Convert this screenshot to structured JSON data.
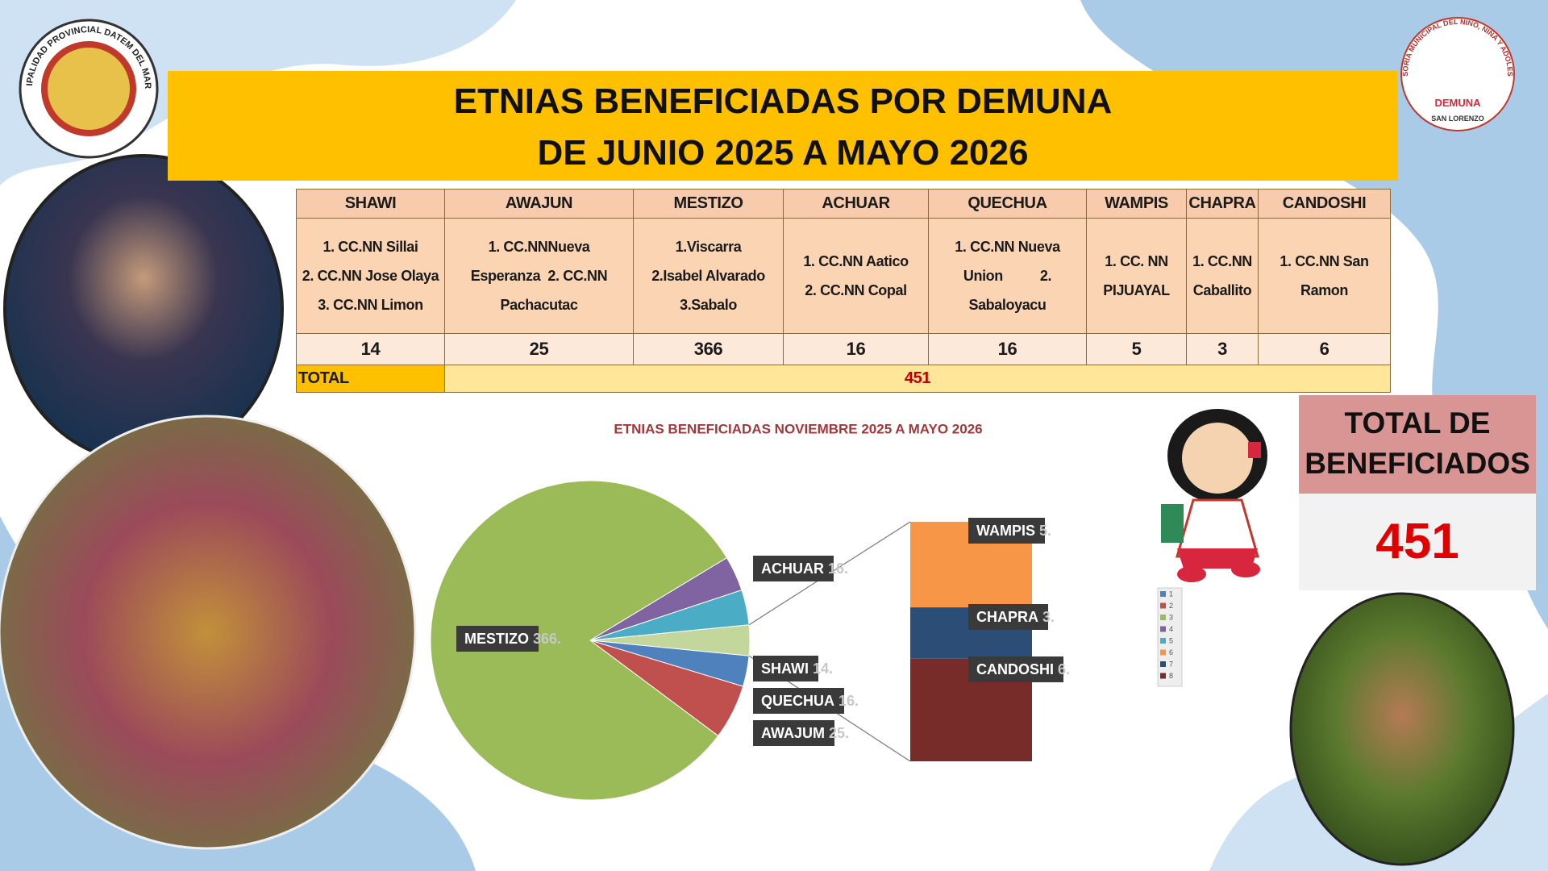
{
  "header": {
    "logo_left_text": "MUNICIPALIDAD PROVINCIAL DATEM DEL MARAÑON",
    "title_lines": [
      "ETNIAS BENEFICIADAS POR DEMUNA",
      "DE JUNIO 2025 A MAYO 2026"
    ],
    "logo_right_text": "DEFENSORÍA MUNICIPAL DEL NIÑO, NIÑA Y ADOLESCENTE",
    "logo_right_name": "DEMUNA",
    "logo_right_place": "SAN LORENZO"
  },
  "table": {
    "headers": [
      "SHAWI",
      "AWAJUN",
      "MESTIZO",
      "ACHUAR",
      "QUECHUA",
      "WAMPIS",
      "CHAPRA",
      "CANDOSHI"
    ],
    "communities": [
      [
        "1. CC.NN Sillai",
        "2. CC.NN Jose Olaya",
        "3. CC.NN Limon"
      ],
      [
        "1. CC.NNNueva",
        "Esperanza  2. CC.NN",
        "Pachacutac"
      ],
      [
        "1.Viscarra",
        "2.Isabel Alvarado",
        "3.Sabalo"
      ],
      [
        "1. CC.NN Aatico",
        "2. CC.NN Copal"
      ],
      [
        "1. CC.NN Nueva",
        "Union          2.",
        "Sabaloyacu"
      ],
      [
        "1. CC. NN",
        "PIJUAYAL"
      ],
      [
        "1. CC.NN",
        "Caballito"
      ],
      [
        "1. CC.NN San",
        "Ramon"
      ]
    ],
    "counts": [
      14,
      25,
      366,
      16,
      16,
      5,
      3,
      6
    ],
    "total_label": "TOTAL",
    "total": 451
  },
  "chart_data": {
    "type": "pie-of-bar",
    "title": "ETNIAS BENEFICIADAS NOVIEMBRE 2025 A MAYO 2026",
    "categories": [
      "SHAWI",
      "AWAJUM",
      "MESTIZO",
      "ACHUAR",
      "QUECHUA",
      "WAMPIS",
      "CHAPRA",
      "CANDOSHI"
    ],
    "values": [
      14,
      25,
      366,
      16,
      16,
      5,
      3,
      6
    ],
    "value_labels": [
      "14.",
      "25.",
      "366.",
      "16.",
      "16.",
      "5.",
      "3.",
      "6."
    ],
    "colors": [
      "#4f81bd",
      "#c0504d",
      "#9bbb59",
      "#8064a2",
      "#4bacc6",
      "#f79646",
      "#2c4d75",
      "#772c2a"
    ],
    "other_color": "#c3d69b",
    "secondary_count": 3,
    "legend_labels": [
      "1",
      "2",
      "3",
      "4",
      "5",
      "6",
      "7",
      "8"
    ]
  },
  "summary": {
    "title_lines": [
      "TOTAL DE",
      "BENEFICIADOS"
    ],
    "total": 451
  }
}
